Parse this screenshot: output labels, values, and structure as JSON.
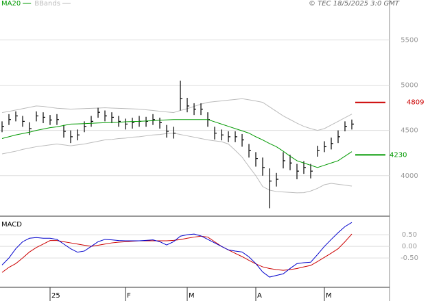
{
  "chart_data": [
    {
      "type": "ohlc",
      "source": "© TEC 18/5/2025 3:0 GMT",
      "bar_color": "#000000",
      "close": [
        4545,
        4620,
        4660,
        4600,
        4520,
        4660,
        4645,
        4615,
        4620,
        4490,
        4430,
        4450,
        4545,
        4600,
        4700,
        4660,
        4645,
        4600,
        4570,
        4585,
        4600,
        4600,
        4620,
        4585,
        4490,
        4470,
        4850,
        4770,
        4735,
        4735,
        4620,
        4470,
        4450,
        4430,
        4430,
        4395,
        4280,
        4190,
        4090,
        3940,
        3960,
        4165,
        4140,
        4050,
        4090,
        4050,
        4280,
        4320,
        4355,
        4430,
        4545,
        4570
      ],
      "high": [
        4600,
        4680,
        4710,
        4660,
        4590,
        4710,
        4700,
        4670,
        4680,
        4560,
        4500,
        4510,
        4600,
        4660,
        4750,
        4720,
        4700,
        4660,
        4630,
        4640,
        4660,
        4650,
        4680,
        4640,
        4560,
        4540,
        5050,
        4860,
        4800,
        4800,
        4700,
        4540,
        4510,
        4490,
        4490,
        4460,
        4350,
        4260,
        4200,
        4080,
        4030,
        4260,
        4230,
        4130,
        4160,
        4130,
        4330,
        4380,
        4420,
        4500,
        4600,
        4620
      ],
      "low": [
        4480,
        4560,
        4600,
        4540,
        4450,
        4600,
        4580,
        4560,
        4560,
        4420,
        4360,
        4390,
        4480,
        4540,
        4640,
        4600,
        4580,
        4540,
        4510,
        4520,
        4540,
        4540,
        4560,
        4520,
        4420,
        4410,
        4720,
        4700,
        4670,
        4670,
        4540,
        4400,
        4390,
        4370,
        4370,
        4320,
        4200,
        4100,
        4000,
        3640,
        3880,
        4080,
        4060,
        3960,
        4020,
        3970,
        4210,
        4260,
        4290,
        4360,
        4490,
        4510
      ],
      "series": [
        {
          "name": "MA20",
          "color": "#009900",
          "values": [
            4410,
            4430,
            4450,
            4465,
            4480,
            4500,
            4515,
            4530,
            4540,
            4555,
            4570,
            4572,
            4575,
            4578,
            4582,
            4585,
            4588,
            4590,
            4595,
            4598,
            4600,
            4604,
            4608,
            4612,
            4616,
            4620,
            4620,
            4620,
            4620,
            4620,
            4620,
            4595,
            4570,
            4545,
            4520,
            4495,
            4470,
            4430,
            4395,
            4355,
            4320,
            4270,
            4215,
            4165,
            4140,
            4115,
            4090,
            4115,
            4140,
            4165,
            4215,
            4265
          ]
        },
        {
          "name": "BBands",
          "color": "#bbbbbb",
          "upper": [
            4697,
            4710,
            4725,
            4740,
            4755,
            4770,
            4765,
            4755,
            4745,
            4740,
            4735,
            4738,
            4741,
            4744,
            4747,
            4750,
            4747,
            4744,
            4741,
            4738,
            4735,
            4728,
            4720,
            4712,
            4704,
            4697,
            4720,
            4740,
            4765,
            4790,
            4810,
            4818,
            4826,
            4834,
            4842,
            4850,
            4838,
            4825,
            4810,
            4760,
            4710,
            4660,
            4620,
            4580,
            4545,
            4520,
            4500,
            4520,
            4560,
            4600,
            4640,
            4680
          ],
          "lower": [
            4240,
            4255,
            4270,
            4290,
            4305,
            4320,
            4330,
            4340,
            4350,
            4340,
            4330,
            4340,
            4350,
            4365,
            4380,
            4395,
            4400,
            4410,
            4415,
            4425,
            4430,
            4440,
            4450,
            4455,
            4465,
            4470,
            4455,
            4440,
            4425,
            4410,
            4395,
            4385,
            4375,
            4350,
            4280,
            4205,
            4100,
            4000,
            3880,
            3840,
            3825,
            3820,
            3815,
            3810,
            3812,
            3830,
            3860,
            3900,
            3915,
            3905,
            3895,
            3885
          ]
        }
      ],
      "levels": [
        {
          "value": 4809,
          "color": "#cc0000"
        },
        {
          "value": 4230,
          "color": "#009900"
        }
      ],
      "ylim": [
        3560,
        5850
      ],
      "yticks": [
        4000,
        4500,
        5000,
        5500
      ],
      "grid": true
    },
    {
      "type": "line",
      "title": "MACD",
      "categories": [
        null,
        null,
        null,
        null,
        null,
        null,
        null,
        "25",
        null,
        null,
        null,
        null,
        null,
        null,
        null,
        null,
        null,
        null,
        "F",
        null,
        null,
        null,
        null,
        null,
        null,
        null,
        null,
        "M",
        null,
        null,
        null,
        null,
        null,
        null,
        null,
        null,
        null,
        "A",
        null,
        null,
        null,
        null,
        null,
        null,
        null,
        null,
        null,
        "M",
        null,
        null,
        null,
        null
      ],
      "series": [
        {
          "color": "#0000cc",
          "values": [
            -0.8,
            -0.5,
            -0.1,
            0.2,
            0.35,
            0.38,
            0.35,
            0.35,
            0.3,
            0.1,
            -0.1,
            -0.25,
            -0.2,
            0.0,
            0.2,
            0.3,
            0.28,
            0.25,
            0.24,
            0.24,
            0.24,
            0.26,
            0.28,
            0.2,
            0.06,
            0.2,
            0.44,
            0.5,
            0.53,
            0.45,
            0.3,
            0.15,
            0.0,
            -0.15,
            -0.2,
            -0.24,
            -0.45,
            -0.74,
            -1.1,
            -1.32,
            -1.25,
            -1.18,
            -0.95,
            -0.74,
            -0.7,
            -0.68,
            -0.35,
            0.0,
            0.3,
            0.59,
            0.85,
            1.03
          ]
        },
        {
          "color": "#cc0000",
          "values": [
            -1.12,
            -0.9,
            -0.74,
            -0.5,
            -0.24,
            -0.05,
            0.1,
            0.25,
            0.25,
            0.2,
            0.15,
            0.1,
            0.05,
            0.0,
            0.05,
            0.1,
            0.15,
            0.18,
            0.2,
            0.22,
            0.24,
            0.24,
            0.24,
            0.24,
            0.24,
            0.26,
            0.29,
            0.35,
            0.4,
            0.44,
            0.4,
            0.2,
            0.0,
            -0.15,
            -0.3,
            -0.44,
            -0.6,
            -0.75,
            -0.88,
            -0.95,
            -1.0,
            -1.03,
            -1.0,
            -0.95,
            -0.88,
            -0.82,
            -0.65,
            -0.47,
            -0.29,
            -0.1,
            0.2,
            0.53
          ]
        }
      ],
      "ylim": [
        -1.76,
        1.24
      ],
      "yticks": [
        {
          "value": 0.5,
          "label": "0.50"
        },
        {
          "value": 0,
          "label": "0.00"
        },
        {
          "value": -0.5,
          "label": "-0.50"
        }
      ],
      "grid": true
    }
  ]
}
